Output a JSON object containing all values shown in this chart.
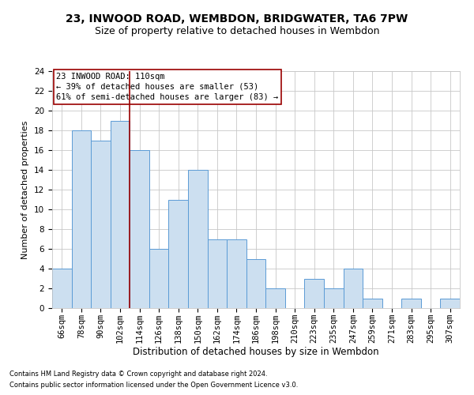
{
  "title1": "23, INWOOD ROAD, WEMBDON, BRIDGWATER, TA6 7PW",
  "title2": "Size of property relative to detached houses in Wembdon",
  "xlabel": "Distribution of detached houses by size in Wembdon",
  "ylabel": "Number of detached properties",
  "footnote1": "Contains HM Land Registry data © Crown copyright and database right 2024.",
  "footnote2": "Contains public sector information licensed under the Open Government Licence v3.0.",
  "categories": [
    "66sqm",
    "78sqm",
    "90sqm",
    "102sqm",
    "114sqm",
    "126sqm",
    "138sqm",
    "150sqm",
    "162sqm",
    "174sqm",
    "186sqm",
    "198sqm",
    "210sqm",
    "223sqm",
    "235sqm",
    "247sqm",
    "259sqm",
    "271sqm",
    "283sqm",
    "295sqm",
    "307sqm"
  ],
  "values": [
    4,
    18,
    17,
    19,
    16,
    6,
    11,
    14,
    7,
    7,
    5,
    2,
    0,
    3,
    2,
    4,
    1,
    0,
    1,
    0,
    1
  ],
  "bar_color": "#ccdff0",
  "bar_edge_color": "#5b9bd5",
  "grid_color": "#c8c8c8",
  "ref_line_color": "#990000",
  "annotation_box_color": "#990000",
  "annotation_text": "23 INWOOD ROAD: 110sqm\n← 39% of detached houses are smaller (53)\n61% of semi-detached houses are larger (83) →",
  "ylim": [
    0,
    24
  ],
  "yticks": [
    0,
    2,
    4,
    6,
    8,
    10,
    12,
    14,
    16,
    18,
    20,
    22,
    24
  ],
  "background_color": "#ffffff",
  "title1_fontsize": 10,
  "title2_fontsize": 9,
  "xlabel_fontsize": 8.5,
  "ylabel_fontsize": 8,
  "tick_fontsize": 7.5,
  "annotation_fontsize": 7.5,
  "footnote_fontsize": 6
}
